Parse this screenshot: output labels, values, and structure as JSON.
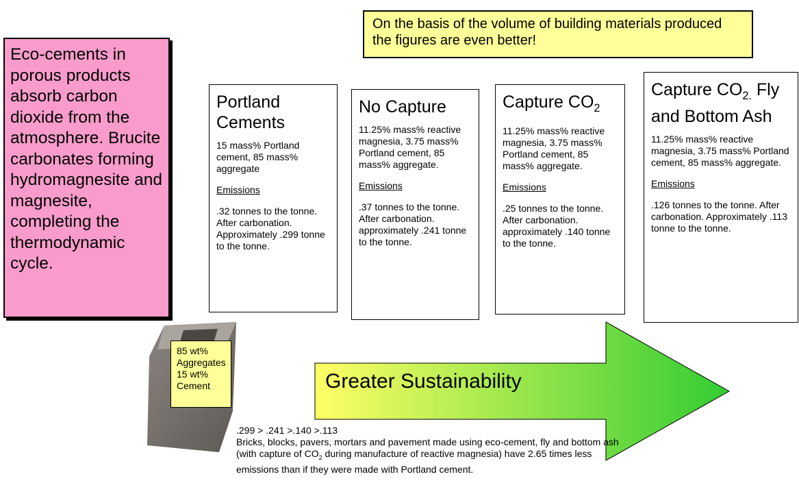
{
  "note": {
    "text": "Eco-cements in porous products absorb carbon dioxide from the atmosphere. Brucite carbonates forming hydromagnesite and magnesite, completing the thermodynamic cycle."
  },
  "callout": {
    "text": "On the basis of the volume of building materials produced the figures are even better!"
  },
  "columns": [
    {
      "title": {
        "text": "Portland Cements"
      },
      "composition": "15 mass% Portland cement, 85 mass% aggregate",
      "emissions_heading": "Emissions",
      "emissions": ".32 tonnes to the tonne. After carbonation. Approximately .299 tonne to the tonne."
    },
    {
      "title": {
        "text": "No Capture"
      },
      "composition": "11.25% mass% reactive magnesia, 3.75 mass% Portland cement, 85 mass% aggregate.",
      "emissions_heading": "Emissions",
      "emissions": ".37 tonnes to the tonne. After carbonation. approximately .241 tonne to the tonne."
    },
    {
      "title": {
        "text": "Capture CO",
        "sub": "2"
      },
      "composition": "11.25% mass% reactive magnesia, 3.75 mass% Portland cement, 85 mass% aggregate.",
      "emissions_heading": "Emissions",
      "emissions": ".25 tonnes to the tonne. After carbonation. approximately .140 tonne to the tonne."
    },
    {
      "title": {
        "text": "Capture CO",
        "sub": "2.",
        "after": " Fly and Bottom Ash"
      },
      "composition": "11.25% mass% reactive magnesia, 3.75 mass% Portland cement, 85 mass% aggregate.",
      "emissions_heading": "Emissions",
      "emissions": ".126 tonnes to the tonne. After carbonation. Approximately .113 tonne to the tonne."
    }
  ],
  "brick_label": [
    "85 wt%",
    "Aggregates",
    "15 wt%",
    "Cement"
  ],
  "arrow_label": "Greater Sustainability",
  "summary": {
    "comparison": ".299 > .241 >.140 >.113",
    "text": "Bricks, blocks, pavers, mortars and pavement made using eco-cement, fly and bottom ash (with capture of CO",
    "sub": "2",
    "after": " during manufacture of reactive magnesia) have 2.65 times less emissions than if they were made with Portland cement."
  }
}
